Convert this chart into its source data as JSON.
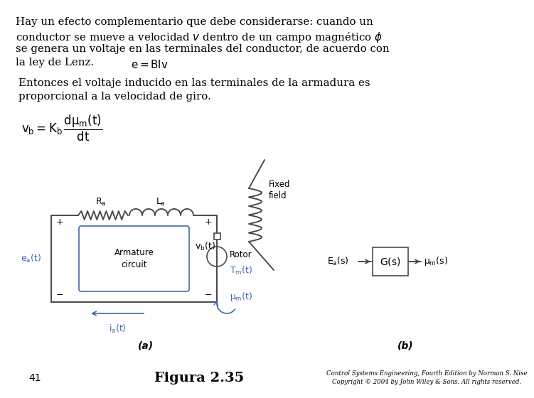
{
  "bg_color": "#ffffff",
  "text_color": "#000000",
  "circuit_color": "#4a4a4a",
  "blue_color": "#4169b0",
  "main_text_lines": [
    "Hay un efecto complementario que debe considerarse: cuando un",
    "conductor se mueve a velocidad $v$ dentro de un campo magnético $\\phi$",
    "se genera un voltaje en las terminales del conductor, de acuerdo con",
    "la ley de Lenz."
  ],
  "formula_inline": "$e = Blv$",
  "sub_text_lines": [
    "Entonces el voltaje inducido en las terminales de la armadura es",
    "proporcional a la velocidad de giro."
  ],
  "formula_block": "$v_b = K_b\\,\\dfrac{d\\theta_m(t)}{dt}$",
  "page_number": "41",
  "figure_label": "Figura 2.35",
  "copyright_line1": "Control Systems Engineering, Fourth Edition by Norman S. Nise",
  "copyright_line2": "Copyright © 2004 by John Wiley & Sons. All rights reserved.",
  "label_a": "(a)",
  "label_b": "(b)",
  "fixed_field": "Fixed\nfield",
  "rotor_label": "Rotor",
  "armature_label": "Armature\ncircuit"
}
